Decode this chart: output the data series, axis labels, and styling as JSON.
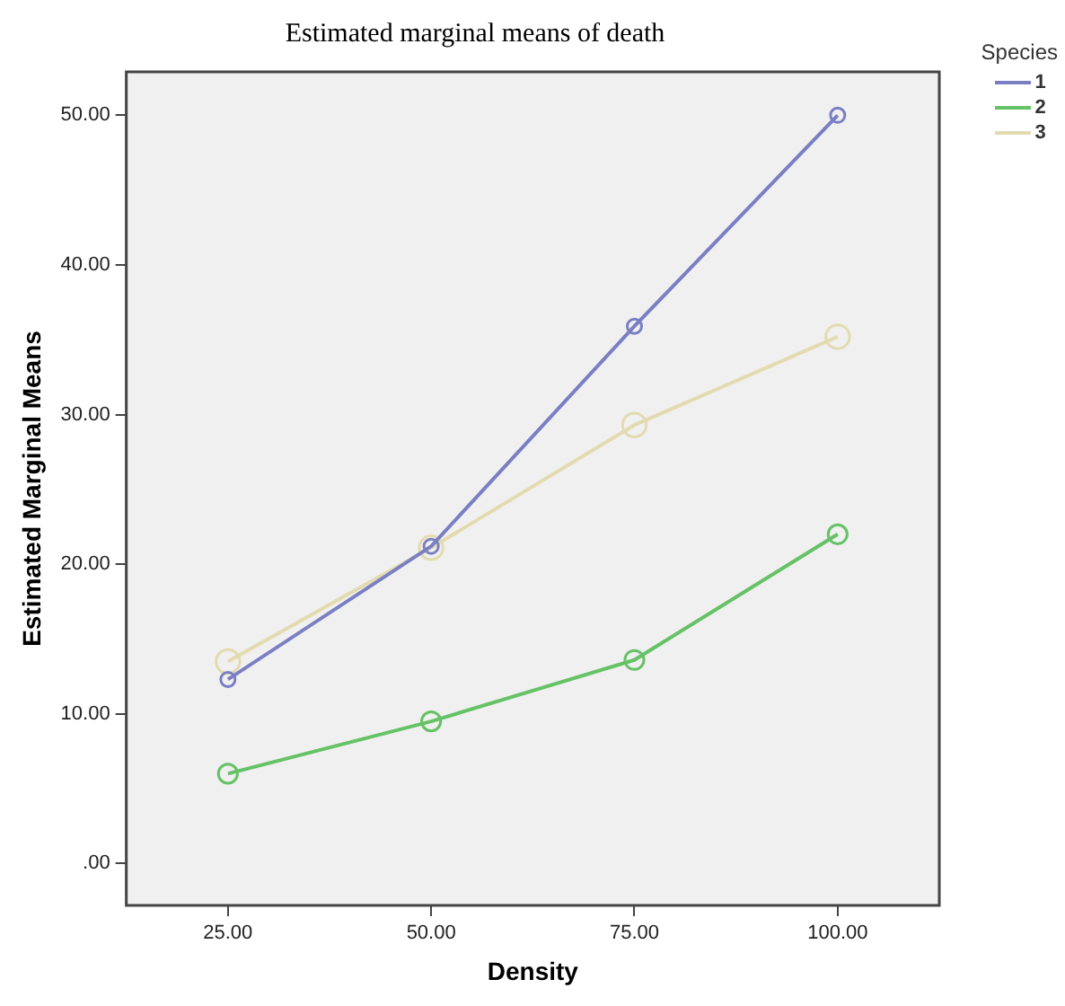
{
  "chart_data": {
    "type": "line",
    "title": "Estimated marginal means of death",
    "xlabel": "Density",
    "ylabel": "Estimated Marginal Means",
    "legend_title": "Species",
    "categories": [
      "25.00",
      "50.00",
      "75.00",
      "100.00"
    ],
    "series": [
      {
        "name": "1",
        "color": "#7a7fc4",
        "values": [
          12.3,
          21.2,
          35.9,
          50.0
        ]
      },
      {
        "name": "2",
        "color": "#66c266",
        "values": [
          6.0,
          9.5,
          13.6,
          22.0
        ]
      },
      {
        "name": "3",
        "color": "#e3dbb0",
        "values": [
          13.5,
          21.1,
          29.3,
          35.2
        ]
      }
    ],
    "ylim": [
      -2.8,
      52.9
    ],
    "yticks": [
      {
        "value": 0,
        "label": ".00"
      },
      {
        "value": 10,
        "label": "10.00"
      },
      {
        "value": 20,
        "label": "20.00"
      },
      {
        "value": 30,
        "label": "30.00"
      },
      {
        "value": 40,
        "label": "40.00"
      },
      {
        "value": 50,
        "label": "50.00"
      }
    ],
    "grid": false,
    "legend": "top right",
    "marker": "circle",
    "line_style": "solid"
  }
}
